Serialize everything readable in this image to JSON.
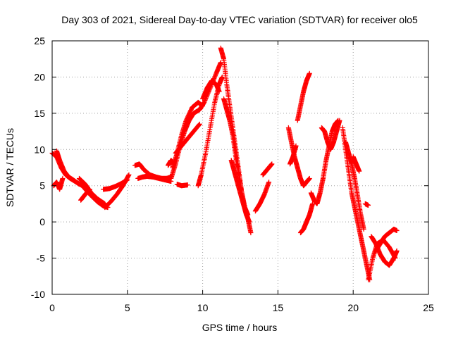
{
  "chart_data": {
    "type": "scatter",
    "title": "Day 303 of 2021, Sidereal Day-to-day VTEC variation (SDTVAR) for receiver olo5",
    "xlabel": "GPS time / hours",
    "ylabel": "SDTVAR / TECUs",
    "xlim": [
      0,
      25
    ],
    "ylim": [
      -10,
      25
    ],
    "xticks": [
      0,
      5,
      10,
      15,
      20,
      25
    ],
    "yticks": [
      -10,
      -5,
      0,
      5,
      10,
      15,
      20,
      25
    ],
    "grid": true,
    "marker": "+",
    "color": "#ff0000",
    "series": [
      {
        "name": "arc-1",
        "x": [
          0.0,
          0.3,
          0.6,
          0.9,
          1.2,
          1.6,
          2.0,
          2.5,
          3.0,
          3.4,
          3.7
        ],
        "y": [
          9.5,
          9.0,
          7.5,
          6.5,
          6.0,
          5.5,
          5.0,
          3.8,
          2.8,
          2.2,
          2.0
        ]
      },
      {
        "name": "arc-2",
        "x": [
          0.3,
          0.5,
          0.8,
          1.1,
          1.4,
          1.8
        ],
        "y": [
          9.8,
          8.5,
          7.0,
          6.2,
          5.8,
          5.2
        ]
      },
      {
        "name": "arc-3",
        "x": [
          0.1,
          0.3,
          0.5,
          0.7
        ],
        "y": [
          5.0,
          5.5,
          4.5,
          6.0
        ]
      },
      {
        "name": "arc-4",
        "x": [
          1.8,
          2.2,
          2.6,
          3.0,
          3.5
        ],
        "y": [
          6.0,
          5.2,
          4.0,
          3.2,
          2.5
        ]
      },
      {
        "name": "arc-5",
        "x": [
          3.5,
          3.9,
          4.3,
          4.7,
          5.1
        ],
        "y": [
          2.0,
          2.8,
          3.8,
          5.0,
          6.5
        ]
      },
      {
        "name": "arc-6",
        "x": [
          3.4,
          3.8,
          4.2,
          4.6,
          5.0
        ],
        "y": [
          4.5,
          4.6,
          4.9,
          5.3,
          5.8
        ]
      },
      {
        "name": "arc-7",
        "x": [
          1.9,
          2.2,
          2.5
        ],
        "y": [
          3.0,
          3.8,
          4.5
        ]
      },
      {
        "name": "arc-8",
        "x": [
          5.5,
          5.8,
          6.1,
          6.5,
          6.9,
          7.3,
          7.6,
          7.9
        ],
        "y": [
          7.8,
          8.0,
          7.2,
          6.5,
          6.2,
          6.0,
          6.0,
          6.2
        ]
      },
      {
        "name": "arc-9",
        "x": [
          5.7,
          6.0,
          6.3,
          6.7,
          7.1,
          7.5,
          7.9
        ],
        "y": [
          6.0,
          6.2,
          6.3,
          6.2,
          6.0,
          5.8,
          5.6
        ]
      },
      {
        "name": "arc-10",
        "x": [
          7.9,
          8.2,
          8.5,
          8.8,
          9.1,
          9.4,
          9.8,
          10.1,
          10.5,
          10.9,
          11.2
        ],
        "y": [
          6.0,
          8.0,
          10.5,
          12.5,
          14.0,
          15.0,
          15.5,
          16.5,
          18.5,
          20.5,
          22.0
        ]
      },
      {
        "name": "arc-11",
        "x": [
          8.0,
          8.3,
          8.6,
          8.9,
          9.3,
          9.7,
          10.0
        ],
        "y": [
          7.5,
          9.5,
          12.0,
          14.0,
          15.8,
          16.5,
          16.0
        ]
      },
      {
        "name": "arc-12",
        "x": [
          8.2,
          8.6,
          9.0,
          9.4,
          9.8
        ],
        "y": [
          9.5,
          10.5,
          11.5,
          12.5,
          13.5
        ]
      },
      {
        "name": "arc-13",
        "x": [
          7.7,
          7.9,
          8.1
        ],
        "y": [
          7.8,
          8.5,
          8.0
        ]
      },
      {
        "name": "arc-14",
        "x": [
          8.3,
          8.6,
          9.0
        ],
        "y": [
          5.2,
          5.0,
          5.1
        ]
      },
      {
        "name": "arc-15",
        "x": [
          9.7,
          9.9,
          10.2,
          10.5,
          10.8,
          11.1,
          11.3
        ],
        "y": [
          5.0,
          6.5,
          9.5,
          13.0,
          16.5,
          19.0,
          20.0
        ]
      },
      {
        "name": "arc-16",
        "x": [
          10.0,
          10.3,
          10.6,
          10.9,
          11.1
        ],
        "y": [
          17.0,
          18.5,
          19.5,
          19.0,
          18.0
        ]
      },
      {
        "name": "arc-17",
        "x": [
          11.2,
          11.4,
          11.6,
          11.8,
          12.0,
          12.2,
          12.4,
          12.6,
          12.8,
          13.0,
          13.2
        ],
        "y": [
          24.0,
          22.5,
          19.0,
          16.0,
          13.0,
          10.0,
          7.0,
          4.0,
          2.0,
          0.5,
          -1.5
        ]
      },
      {
        "name": "arc-18",
        "x": [
          11.4,
          11.6,
          11.8,
          12.0,
          12.2,
          12.4,
          12.6,
          12.8,
          13.0
        ],
        "y": [
          17.0,
          15.5,
          14.0,
          12.0,
          9.0,
          6.5,
          4.0,
          2.0,
          1.0
        ]
      },
      {
        "name": "arc-19",
        "x": [
          11.9,
          12.1,
          12.3,
          12.5,
          12.7,
          12.9,
          13.1
        ],
        "y": [
          8.5,
          7.0,
          5.5,
          4.0,
          2.5,
          1.0,
          0.0
        ]
      },
      {
        "name": "arc-20",
        "x": [
          13.5,
          13.8,
          14.1,
          14.4
        ],
        "y": [
          1.5,
          2.5,
          3.8,
          5.5
        ]
      },
      {
        "name": "arc-21",
        "x": [
          14.0,
          14.2,
          14.4,
          14.6
        ],
        "y": [
          6.5,
          7.0,
          7.5,
          8.0
        ]
      },
      {
        "name": "arc-22",
        "x": [
          15.7,
          15.9,
          16.1,
          16.3,
          16.5,
          16.7,
          16.9,
          17.1
        ],
        "y": [
          13.0,
          11.0,
          9.0,
          7.5,
          6.0,
          5.0,
          5.5,
          6.0
        ]
      },
      {
        "name": "arc-23",
        "x": [
          16.3,
          16.5,
          16.7,
          16.9,
          17.1
        ],
        "y": [
          14.0,
          16.0,
          18.0,
          19.5,
          20.5
        ]
      },
      {
        "name": "arc-24",
        "x": [
          16.5,
          16.7,
          16.9,
          17.1,
          17.3
        ],
        "y": [
          -1.5,
          -1.0,
          0.0,
          1.0,
          2.5
        ]
      },
      {
        "name": "arc-25",
        "x": [
          17.2,
          17.4,
          17.6,
          17.8,
          18.0,
          18.2,
          18.4,
          18.6,
          18.8,
          19.0
        ],
        "y": [
          4.0,
          3.0,
          2.5,
          4.0,
          6.0,
          8.5,
          10.5,
          12.5,
          13.5,
          14.0
        ]
      },
      {
        "name": "arc-26",
        "x": [
          17.9,
          18.1,
          18.3,
          18.5,
          18.7,
          18.9,
          19.1
        ],
        "y": [
          13.0,
          12.5,
          11.0,
          10.0,
          11.0,
          12.5,
          14.0
        ]
      },
      {
        "name": "arc-27",
        "x": [
          15.8,
          16.0,
          16.2
        ],
        "y": [
          8.0,
          9.0,
          10.5
        ]
      },
      {
        "name": "arc-28",
        "x": [
          19.3,
          19.5,
          19.7,
          19.9,
          20.1,
          20.3,
          20.5,
          20.7,
          20.9,
          21.1
        ],
        "y": [
          13.0,
          10.0,
          7.0,
          4.0,
          2.0,
          0.0,
          -2.0,
          -4.0,
          -6.0,
          -8.0
        ]
      },
      {
        "name": "arc-29",
        "x": [
          19.5,
          19.7,
          19.9,
          20.1,
          20.3,
          20.5,
          20.7
        ],
        "y": [
          11.0,
          9.5,
          8.0,
          6.0,
          3.5,
          1.0,
          -1.0
        ]
      },
      {
        "name": "arc-30",
        "x": [
          20.0,
          20.2,
          20.4
        ],
        "y": [
          9.0,
          8.0,
          7.0
        ]
      },
      {
        "name": "arc-31",
        "x": [
          20.8,
          21.0
        ],
        "y": [
          2.5,
          2.3
        ]
      },
      {
        "name": "arc-32",
        "x": [
          21.0,
          21.3,
          21.6,
          22.0,
          22.4,
          22.8
        ],
        "y": [
          -8.0,
          -5.0,
          -3.0,
          -2.5,
          -3.5,
          -5.0
        ]
      },
      {
        "name": "arc-33",
        "x": [
          21.5,
          21.8,
          22.1,
          22.4,
          22.7,
          22.9
        ],
        "y": [
          -4.0,
          -3.0,
          -2.0,
          -1.5,
          -1.0,
          -1.2
        ]
      },
      {
        "name": "arc-34",
        "x": [
          21.2,
          21.5,
          21.8,
          22.1,
          22.4,
          22.7,
          22.9
        ],
        "y": [
          -2.0,
          -3.0,
          -4.5,
          -5.5,
          -6.0,
          -5.0,
          -4.0
        ]
      }
    ]
  }
}
